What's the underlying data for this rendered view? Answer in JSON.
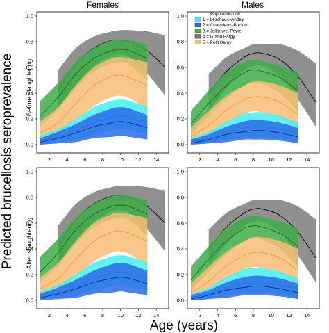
{
  "figure": {
    "ylabel": "Predicted brucellosis seroprevalence",
    "xlabel": "Age (years)",
    "col_titles": [
      "Females",
      "Males"
    ],
    "row_labels": [
      "Before slaughtering",
      "After slaughtering"
    ],
    "legend_title": "Population unit",
    "legend_items": [
      "1 = Leschaux–Andey",
      "2 = Charmieux–Buclon",
      "3 = Jallouvre–Peyre",
      "4 = Grand Bargy",
      "5 = Petit Bargy"
    ]
  },
  "chart_data": {
    "type": "line",
    "layout": "2x2 panel grid",
    "xlim": [
      1,
      15
    ],
    "ylim": [
      0,
      1.0
    ],
    "xticks": [
      "2",
      "4",
      "6",
      "8",
      "10",
      "12",
      "14"
    ],
    "yticks": [
      "0.0",
      "0.2",
      "0.4",
      "0.6",
      "0.8",
      "1.0"
    ],
    "grid": false,
    "legend_position": "top-right panel, upper left",
    "series_style": [
      {
        "band_color": "#44eef0",
        "line_color": "#5a9bd4"
      },
      {
        "band_color": "#2a6ce8",
        "line_color": "#1a2f8c"
      },
      {
        "band_color": "#3fad48",
        "line_color": "#1b6b1f"
      },
      {
        "band_color": "#7c7c7c",
        "line_color": "#111111"
      },
      {
        "band_color": "#f7bd74",
        "line_color": "#e6a333"
      }
    ],
    "panels": [
      {
        "column": "Females",
        "row": "Before slaughtering",
        "series": [
          {
            "legend": 1,
            "x": [
              1,
              3,
              5,
              7,
              9,
              10,
              11,
              13
            ],
            "mean": [
              0.03,
              0.06,
              0.11,
              0.17,
              0.21,
              0.22,
              0.21,
              0.17
            ],
            "lower": [
              0.01,
              0.02,
              0.04,
              0.08,
              0.11,
              0.12,
              0.11,
              0.08
            ],
            "upper": [
              0.07,
              0.12,
              0.2,
              0.29,
              0.34,
              0.35,
              0.34,
              0.29
            ]
          },
          {
            "legend": 2,
            "x": [
              1,
              3,
              5,
              7,
              9,
              10,
              11,
              13
            ],
            "mean": [
              0.02,
              0.05,
              0.09,
              0.14,
              0.17,
              0.18,
              0.17,
              0.13
            ],
            "lower": [
              0.0,
              0.01,
              0.02,
              0.05,
              0.06,
              0.07,
              0.06,
              0.04
            ],
            "upper": [
              0.05,
              0.1,
              0.16,
              0.23,
              0.28,
              0.29,
              0.28,
              0.23
            ]
          },
          {
            "legend": 3,
            "x": [
              1,
              3,
              5,
              7,
              9,
              10,
              11,
              13
            ],
            "mean": [
              0.22,
              0.37,
              0.55,
              0.67,
              0.73,
              0.74,
              0.73,
              0.67
            ],
            "lower": [
              0.14,
              0.27,
              0.44,
              0.57,
              0.63,
              0.64,
              0.62,
              0.5
            ],
            "upper": [
              0.34,
              0.48,
              0.64,
              0.75,
              0.81,
              0.82,
              0.81,
              0.78
            ]
          },
          {
            "legend": 4,
            "x": [
              3,
              5,
              7,
              9,
              10,
              11,
              13,
              15
            ],
            "mean": [
              0.42,
              0.63,
              0.75,
              0.81,
              0.81,
              0.8,
              0.73,
              0.6
            ],
            "lower": [
              0.28,
              0.47,
              0.61,
              0.69,
              0.7,
              0.68,
              0.55,
              0.38
            ],
            "upper": [
              0.58,
              0.75,
              0.84,
              0.88,
              0.89,
              0.89,
              0.88,
              0.85
            ]
          },
          {
            "legend": 5,
            "x": [
              1,
              3,
              5,
              7,
              9,
              10,
              11,
              13
            ],
            "mean": [
              0.09,
              0.17,
              0.32,
              0.46,
              0.53,
              0.54,
              0.52,
              0.46
            ],
            "lower": [
              0.04,
              0.09,
              0.19,
              0.3,
              0.37,
              0.38,
              0.36,
              0.27
            ],
            "upper": [
              0.18,
              0.29,
              0.46,
              0.6,
              0.67,
              0.68,
              0.67,
              0.64
            ]
          }
        ]
      },
      {
        "column": "Males",
        "row": "Before slaughtering",
        "series": [
          {
            "legend": 1,
            "x": [
              1,
              3,
              5,
              7,
              8,
              9,
              11,
              13
            ],
            "mean": [
              0.02,
              0.05,
              0.1,
              0.13,
              0.14,
              0.14,
              0.12,
              0.09
            ],
            "lower": [
              0.0,
              0.01,
              0.04,
              0.06,
              0.06,
              0.06,
              0.05,
              0.02
            ],
            "upper": [
              0.05,
              0.1,
              0.18,
              0.24,
              0.25,
              0.25,
              0.22,
              0.17
            ]
          },
          {
            "legend": 2,
            "x": [
              1,
              3,
              5,
              7,
              8,
              9,
              11,
              13
            ],
            "mean": [
              0.01,
              0.04,
              0.08,
              0.1,
              0.11,
              0.11,
              0.09,
              0.06
            ],
            "lower": [
              0.0,
              0.01,
              0.02,
              0.04,
              0.04,
              0.04,
              0.03,
              0.01
            ],
            "upper": [
              0.04,
              0.08,
              0.14,
              0.18,
              0.19,
              0.19,
              0.17,
              0.13
            ]
          },
          {
            "legend": 3,
            "x": [
              1,
              3,
              5,
              7,
              8,
              9,
              11,
              13
            ],
            "mean": [
              0.16,
              0.32,
              0.46,
              0.56,
              0.58,
              0.57,
              0.52,
              0.42
            ],
            "lower": [
              0.08,
              0.22,
              0.36,
              0.46,
              0.48,
              0.47,
              0.4,
              0.26
            ],
            "upper": [
              0.26,
              0.42,
              0.56,
              0.64,
              0.66,
              0.65,
              0.61,
              0.56
            ]
          },
          {
            "legend": 4,
            "x": [
              3,
              5,
              7,
              8,
              9,
              11,
              13,
              15
            ],
            "mean": [
              0.4,
              0.57,
              0.68,
              0.71,
              0.71,
              0.66,
              0.53,
              0.33
            ],
            "lower": [
              0.26,
              0.44,
              0.58,
              0.61,
              0.61,
              0.53,
              0.35,
              0.14
            ],
            "upper": [
              0.55,
              0.68,
              0.75,
              0.78,
              0.78,
              0.78,
              0.73,
              0.63
            ]
          },
          {
            "legend": 5,
            "x": [
              1,
              3,
              5,
              7,
              8,
              9,
              11,
              13
            ],
            "mean": [
              0.06,
              0.15,
              0.27,
              0.35,
              0.37,
              0.37,
              0.33,
              0.23
            ],
            "lower": [
              0.02,
              0.08,
              0.17,
              0.24,
              0.26,
              0.25,
              0.21,
              0.11
            ],
            "upper": [
              0.13,
              0.26,
              0.38,
              0.46,
              0.49,
              0.49,
              0.46,
              0.4
            ]
          }
        ]
      },
      {
        "column": "Females",
        "row": "After slaughtering",
        "series": [
          {
            "legend": 1,
            "x": [
              1,
              3,
              5,
              7,
              9,
              10,
              11,
              13
            ],
            "mean": [
              0.03,
              0.06,
              0.11,
              0.17,
              0.21,
              0.22,
              0.21,
              0.17
            ],
            "lower": [
              0.01,
              0.02,
              0.04,
              0.08,
              0.11,
              0.12,
              0.11,
              0.08
            ],
            "upper": [
              0.07,
              0.12,
              0.2,
              0.29,
              0.34,
              0.35,
              0.34,
              0.29
            ]
          },
          {
            "legend": 2,
            "x": [
              1,
              3,
              5,
              7,
              9,
              10,
              11,
              13
            ],
            "mean": [
              0.02,
              0.05,
              0.09,
              0.14,
              0.17,
              0.18,
              0.17,
              0.13
            ],
            "lower": [
              0.0,
              0.01,
              0.02,
              0.05,
              0.06,
              0.07,
              0.06,
              0.04
            ],
            "upper": [
              0.05,
              0.1,
              0.16,
              0.23,
              0.28,
              0.29,
              0.28,
              0.23
            ]
          },
          {
            "legend": 3,
            "x": [
              1,
              3,
              5,
              7,
              9,
              10,
              11,
              13
            ],
            "mean": [
              0.22,
              0.37,
              0.55,
              0.67,
              0.73,
              0.74,
              0.73,
              0.67
            ],
            "lower": [
              0.14,
              0.27,
              0.44,
              0.57,
              0.63,
              0.64,
              0.62,
              0.5
            ],
            "upper": [
              0.34,
              0.48,
              0.64,
              0.75,
              0.81,
              0.82,
              0.81,
              0.78
            ]
          },
          {
            "legend": 4,
            "x": [
              3,
              5,
              7,
              9,
              10,
              11,
              13,
              15
            ],
            "mean": [
              0.42,
              0.63,
              0.75,
              0.81,
              0.81,
              0.8,
              0.73,
              0.6
            ],
            "lower": [
              0.28,
              0.47,
              0.61,
              0.69,
              0.7,
              0.68,
              0.55,
              0.38
            ],
            "upper": [
              0.58,
              0.75,
              0.84,
              0.88,
              0.89,
              0.89,
              0.88,
              0.85
            ]
          },
          {
            "legend": 5,
            "x": [
              1,
              3,
              5,
              7,
              9,
              10,
              11,
              13
            ],
            "mean": [
              0.09,
              0.17,
              0.32,
              0.46,
              0.53,
              0.54,
              0.52,
              0.46
            ],
            "lower": [
              0.04,
              0.09,
              0.19,
              0.3,
              0.37,
              0.38,
              0.36,
              0.27
            ],
            "upper": [
              0.18,
              0.29,
              0.46,
              0.6,
              0.67,
              0.68,
              0.67,
              0.64
            ]
          }
        ]
      },
      {
        "column": "Males",
        "row": "After slaughtering",
        "series": [
          {
            "legend": 1,
            "x": [
              1,
              3,
              5,
              7,
              8,
              9,
              11,
              13
            ],
            "mean": [
              0.02,
              0.05,
              0.1,
              0.13,
              0.14,
              0.14,
              0.12,
              0.09
            ],
            "lower": [
              0.0,
              0.01,
              0.04,
              0.06,
              0.06,
              0.06,
              0.05,
              0.02
            ],
            "upper": [
              0.05,
              0.1,
              0.18,
              0.24,
              0.25,
              0.25,
              0.22,
              0.17
            ]
          },
          {
            "legend": 2,
            "x": [
              1,
              3,
              5,
              7,
              8,
              9,
              11,
              13
            ],
            "mean": [
              0.01,
              0.04,
              0.08,
              0.1,
              0.11,
              0.11,
              0.09,
              0.06
            ],
            "lower": [
              0.0,
              0.01,
              0.02,
              0.04,
              0.04,
              0.04,
              0.03,
              0.01
            ],
            "upper": [
              0.04,
              0.08,
              0.14,
              0.18,
              0.19,
              0.19,
              0.17,
              0.13
            ]
          },
          {
            "legend": 3,
            "x": [
              1,
              3,
              5,
              7,
              8,
              9,
              11,
              13
            ],
            "mean": [
              0.16,
              0.32,
              0.46,
              0.56,
              0.58,
              0.57,
              0.52,
              0.42
            ],
            "lower": [
              0.08,
              0.22,
              0.36,
              0.46,
              0.48,
              0.47,
              0.4,
              0.26
            ],
            "upper": [
              0.26,
              0.42,
              0.56,
              0.64,
              0.66,
              0.65,
              0.61,
              0.56
            ]
          },
          {
            "legend": 4,
            "x": [
              3,
              5,
              7,
              8,
              9,
              11,
              13,
              15
            ],
            "mean": [
              0.4,
              0.57,
              0.68,
              0.71,
              0.71,
              0.66,
              0.53,
              0.33
            ],
            "lower": [
              0.26,
              0.44,
              0.58,
              0.61,
              0.61,
              0.53,
              0.35,
              0.14
            ],
            "upper": [
              0.55,
              0.68,
              0.75,
              0.78,
              0.78,
              0.78,
              0.73,
              0.63
            ]
          },
          {
            "legend": 5,
            "x": [
              1,
              3,
              5,
              7,
              8,
              9,
              11,
              13
            ],
            "mean": [
              0.06,
              0.15,
              0.27,
              0.35,
              0.37,
              0.37,
              0.33,
              0.23
            ],
            "lower": [
              0.02,
              0.08,
              0.17,
              0.24,
              0.26,
              0.25,
              0.21,
              0.11
            ],
            "upper": [
              0.13,
              0.26,
              0.38,
              0.46,
              0.49,
              0.49,
              0.46,
              0.4
            ]
          }
        ]
      }
    ]
  }
}
